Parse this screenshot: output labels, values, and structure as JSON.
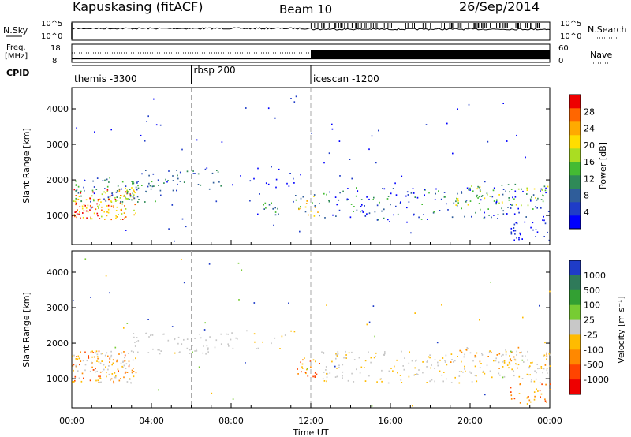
{
  "header": {
    "title": "Kapuskasing (fitACF)",
    "beam": "Beam 10",
    "date": "26/Sep/2014"
  },
  "chart_data": [
    {
      "type": "line",
      "panel": "nsky",
      "ylabel": "N.Sky",
      "ylabel_right": "N.Search",
      "ytick_labels_left": [
        "10^5",
        "10^0"
      ],
      "ytick_labels_right": [
        "10^5",
        "10^0"
      ],
      "scale": "log",
      "series": [
        {
          "name": "N.Sky",
          "style": "solid"
        },
        {
          "name": "N.Search",
          "style": "dotted"
        }
      ]
    },
    {
      "type": "line",
      "panel": "freq",
      "ylabel_lines": [
        "Freq.",
        "[MHz]"
      ],
      "ylabel_right": "Nave",
      "ylim": [
        8,
        18
      ],
      "yticks_left": [
        "18",
        "8"
      ],
      "yticks_right": [
        "60",
        "0"
      ],
      "series": [
        {
          "name": "Freq.",
          "style": "solid",
          "values_hours": [
            0,
            24
          ],
          "values": [
            10,
            10
          ]
        },
        {
          "name": "Nave",
          "style": "dotted"
        }
      ]
    },
    {
      "type": "table",
      "panel": "cpid",
      "label": "CPID",
      "segments": [
        {
          "start_hour": 0,
          "text": "themis -3300"
        },
        {
          "start_hour": 6,
          "text": "rbsp 200"
        },
        {
          "start_hour": 12,
          "text": "icescan -1200"
        }
      ]
    },
    {
      "type": "heatmap",
      "panel": "power",
      "ylabel": "Slant Range [km]",
      "yticks": [
        1000,
        2000,
        3000,
        4000
      ],
      "ylim": [
        180,
        4600
      ],
      "xlim": [
        0,
        24
      ],
      "colorbar": {
        "label": "Power [dB]",
        "ticks": [
          "4",
          "8",
          "12",
          "16",
          "20",
          "24",
          "28"
        ],
        "colors": [
          "#0000ff",
          "#1f3cc8",
          "#2f5d9a",
          "#2f8a58",
          "#44bb33",
          "#aadd22",
          "#ffdd00",
          "#ffaa00",
          "#ff6600",
          "#ee0000"
        ]
      }
    },
    {
      "type": "heatmap",
      "panel": "velocity",
      "ylabel": "Slant Range [km]",
      "yticks": [
        1000,
        2000,
        3000,
        4000
      ],
      "ylim": [
        180,
        4600
      ],
      "xlim": [
        0,
        24
      ],
      "colorbar": {
        "label": "Velocity [m s⁻¹]",
        "ticks": [
          "1000",
          "500",
          "100",
          "25",
          "-25",
          "-100",
          "-500",
          "-1000"
        ],
        "colors": [
          "#1f3cc8",
          "#2f7a5a",
          "#33a033",
          "#77cc33",
          "#c8c8c8",
          "#ffbb00",
          "#ff8800",
          "#ff4400",
          "#ee0000"
        ]
      }
    },
    {
      "type": "axis",
      "panel": "time",
      "xlabel": "Time UT",
      "xtick_labels": [
        "00:00",
        "04:00",
        "08:00",
        "12:00",
        "16:00",
        "20:00",
        "00:00"
      ],
      "xtick_hours": [
        0,
        4,
        8,
        12,
        16,
        20,
        24
      ]
    }
  ]
}
